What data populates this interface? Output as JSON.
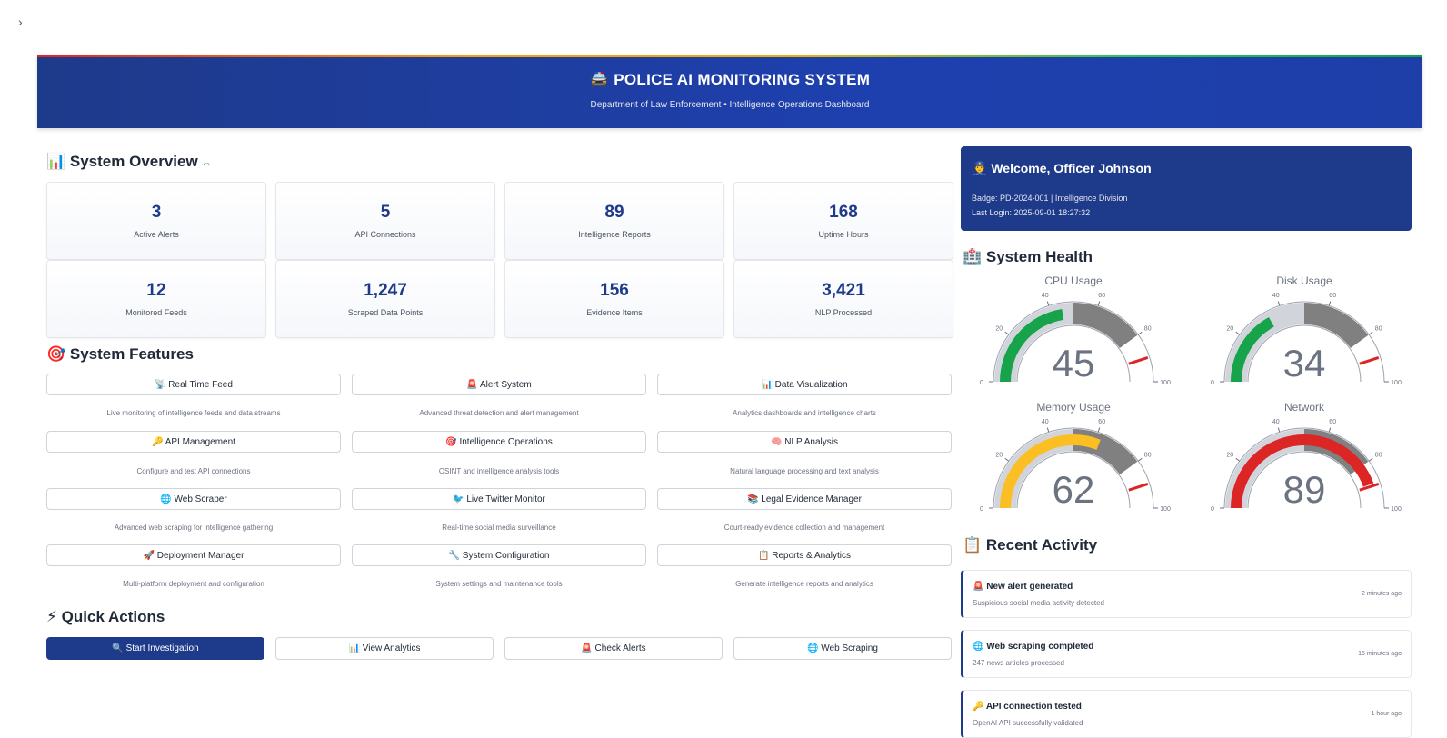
{
  "sidebar_toggle": "›",
  "header": {
    "title": "🚔 POLICE AI MONITORING SYSTEM",
    "subtitle": "Department of Law Enforcement • Intelligence Operations Dashboard"
  },
  "overview": {
    "title": "📊 System Overview",
    "link_icon": "⇔",
    "metrics": [
      {
        "value": "3",
        "label": "Active Alerts"
      },
      {
        "value": "5",
        "label": "API Connections"
      },
      {
        "value": "89",
        "label": "Intelligence Reports"
      },
      {
        "value": "168",
        "label": "Uptime Hours"
      },
      {
        "value": "12",
        "label": "Monitored Feeds"
      },
      {
        "value": "1,247",
        "label": "Scraped Data Points"
      },
      {
        "value": "156",
        "label": "Evidence Items"
      },
      {
        "value": "3,421",
        "label": "NLP Processed"
      }
    ]
  },
  "features": {
    "title": "🎯 System Features",
    "items": [
      {
        "label": "📡 Real Time Feed",
        "desc": "Live monitoring of intelligence feeds and data streams"
      },
      {
        "label": "🚨 Alert System",
        "desc": "Advanced threat detection and alert management"
      },
      {
        "label": "📊 Data Visualization",
        "desc": "Analytics dashboards and intelligence charts"
      },
      {
        "label": "🔑 API Management",
        "desc": "Configure and test API connections"
      },
      {
        "label": "🎯 Intelligence Operations",
        "desc": "OSINT and intelligence analysis tools"
      },
      {
        "label": "🧠 NLP Analysis",
        "desc": "Natural language processing and text analysis"
      },
      {
        "label": "🌐 Web Scraper",
        "desc": "Advanced web scraping for intelligence gathering"
      },
      {
        "label": "🐦 Live Twitter Monitor",
        "desc": "Real-time social media surveillance"
      },
      {
        "label": "📚 Legal Evidence Manager",
        "desc": "Court-ready evidence collection and management"
      },
      {
        "label": "🚀 Deployment Manager",
        "desc": "Multi-platform deployment and configuration"
      },
      {
        "label": "🔧 System Configuration",
        "desc": "System settings and maintenance tools"
      },
      {
        "label": "📋 Reports & Analytics",
        "desc": "Generate intelligence reports and analytics"
      }
    ]
  },
  "quick_actions": {
    "title": "⚡ Quick Actions",
    "items": [
      "🔍 Start Investigation",
      "📊 View Analytics",
      "🚨 Check Alerts",
      "🌐 Web Scraping"
    ]
  },
  "welcome": {
    "title": "👮 Welcome, Officer Johnson",
    "badge": "Badge: PD-2024-001 | Intelligence Division",
    "last_login": "Last Login: 2025-09-01 18:27:32"
  },
  "health": {
    "title": "🏥 System Health",
    "gauges": [
      {
        "title": "CPU Usage",
        "value": 45,
        "color": "#16a34a"
      },
      {
        "title": "Disk Usage",
        "value": 34,
        "color": "#16a34a"
      },
      {
        "title": "Memory Usage",
        "value": 62,
        "color": "#fbbf24"
      },
      {
        "title": "Network",
        "value": 89,
        "color": "#dc2626"
      }
    ],
    "threshold": 90,
    "ticks": [
      "0",
      "20",
      "40",
      "60",
      "80",
      "100"
    ]
  },
  "activity": {
    "title": "📋 Recent Activity",
    "items": [
      {
        "title": "🚨 New alert generated",
        "desc": "Suspicious social media activity detected",
        "time": "2 minutes ago"
      },
      {
        "title": "🌐 Web scraping completed",
        "desc": "247 news articles processed",
        "time": "15 minutes ago"
      },
      {
        "title": "🔑 API connection tested",
        "desc": "OpenAI API successfully validated",
        "time": "1 hour ago"
      }
    ]
  }
}
